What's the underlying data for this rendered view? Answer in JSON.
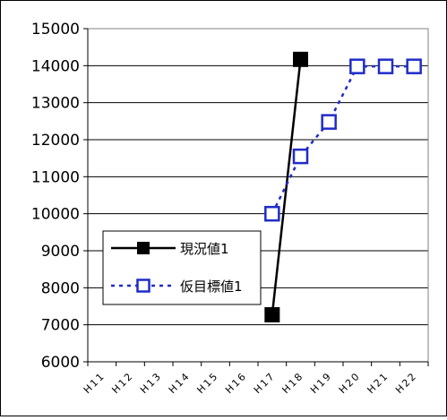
{
  "chart_data": {
    "type": "line",
    "categories": [
      "H11",
      "H12",
      "H13",
      "H14",
      "H15",
      "H16",
      "H17",
      "H18",
      "H19",
      "H20",
      "H21",
      "H22"
    ],
    "ylim": [
      6000,
      15000
    ],
    "yticks": [
      6000,
      7000,
      8000,
      9000,
      10000,
      11000,
      12000,
      13000,
      14000,
      15000
    ],
    "grid": true,
    "legend_position": "left",
    "series": [
      {
        "name": "現況値1",
        "color": "#000000",
        "line_style": "solid",
        "marker": "filled-square",
        "values": [
          null,
          null,
          null,
          null,
          null,
          null,
          7270,
          14170,
          null,
          null,
          null,
          null
        ]
      },
      {
        "name": "仮目標値1",
        "color": "#1f2cc8",
        "line_style": "dotted",
        "marker": "open-square",
        "values": [
          null,
          null,
          null,
          null,
          null,
          null,
          10000,
          11550,
          12480,
          13980,
          13980,
          13980
        ]
      }
    ]
  }
}
